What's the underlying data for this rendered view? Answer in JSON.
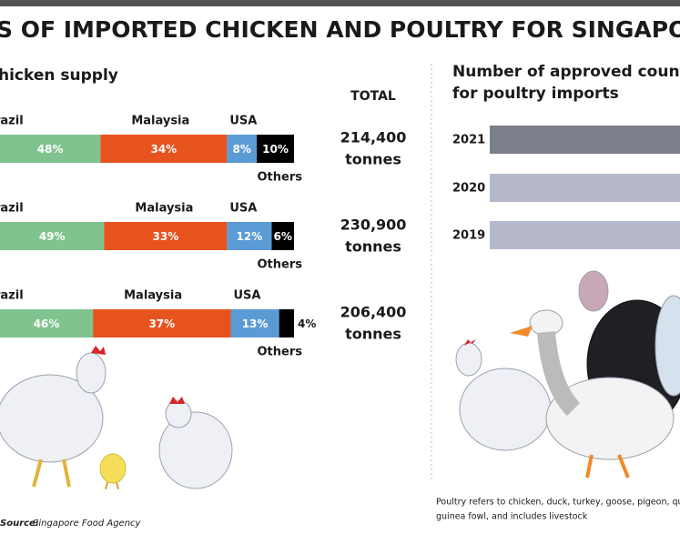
{
  "header": {
    "title": "S OF IMPORTED CHICKEN AND POULTRY FOR SINGAPORE"
  },
  "chart_data": [
    {
      "type": "stacked-bar",
      "title": "hicken supply",
      "total_heading": "TOTAL",
      "series": [
        {
          "name": "razil",
          "color": "#80c38f",
          "values": [
            48,
            49,
            46
          ],
          "value_labels": [
            "48%",
            "49%",
            "46%"
          ]
        },
        {
          "name": "Malaysia",
          "color": "#e6531f",
          "values": [
            34,
            33,
            37
          ],
          "value_labels": [
            "34%",
            "33%",
            "37%"
          ]
        },
        {
          "name": "USA",
          "color": "#5b9bd5",
          "values": [
            8,
            12,
            13
          ],
          "value_labels": [
            "8%",
            "12%",
            "13%"
          ]
        },
        {
          "name": "Others",
          "color": "#000000",
          "values": [
            10,
            6,
            4
          ],
          "value_labels": [
            "10%",
            "6%",
            "4%"
          ]
        }
      ],
      "totals": [
        {
          "value": 214400,
          "label": "214,400"
        },
        {
          "value": 230900,
          "label": "230,900"
        },
        {
          "value": 206400,
          "label": "206,400"
        }
      ],
      "total_unit": "tonnes"
    },
    {
      "type": "bar",
      "title_lines": [
        "Number of approved countr",
        "for poultry imports"
      ],
      "categories": [
        "2021",
        "2020",
        "2019"
      ],
      "colors": [
        "#7b7f8b",
        "#b5b9cb",
        "#b5b9cb"
      ]
    }
  ],
  "footer": {
    "source_label": "Source:",
    "source": "Singapore Food Agency",
    "note_lines": [
      "Poultry refers to chicken, duck, turkey, goose, pigeon, quail, c",
      "guinea fowl, and includes livestock"
    ]
  }
}
